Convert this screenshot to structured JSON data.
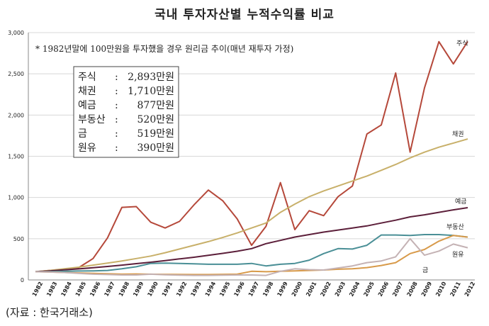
{
  "title": "국내 투자자산별 누적수익률 비교",
  "source": "(자료 : 한국거래소)",
  "chart_data": {
    "type": "line",
    "title": "국내 투자자산별 누적수익률 비교",
    "note": "* 1982년말에 100만원을 투자했을 경우 원리금 추이(매년 재투자 가정)",
    "xlabel": "",
    "ylabel": "",
    "ylim": [
      0,
      3000
    ],
    "yticks": [
      "0",
      "500",
      "1,000",
      "1,500",
      "2,000",
      "2,500",
      "3,000"
    ],
    "grid": true,
    "x": [
      "1982",
      "1983",
      "1984",
      "1985",
      "1986",
      "1987",
      "1988",
      "1989",
      "1990",
      "1991",
      "1992",
      "1993",
      "1994",
      "1995",
      "1996",
      "1997",
      "1998",
      "1999",
      "2000",
      "2001",
      "2002",
      "2003",
      "2004",
      "2005",
      "2006",
      "2007",
      "2008",
      "2009",
      "2010",
      "2011",
      "2012"
    ],
    "summary": [
      {
        "label": "주식",
        "value": "2,893만원"
      },
      {
        "label": "채권",
        "value": "1,710만원"
      },
      {
        "label": "예금",
        "value": "877만원"
      },
      {
        "label": "부동산",
        "value": "520만원"
      },
      {
        "label": "금",
        "value": "519만원"
      },
      {
        "label": "원유",
        "value": "390만원"
      }
    ],
    "series": [
      {
        "name": "주식",
        "color": "#b5483a",
        "values": [
          100,
          115,
          130,
          150,
          260,
          510,
          880,
          890,
          700,
          630,
          710,
          910,
          1090,
          960,
          740,
          420,
          650,
          1180,
          610,
          840,
          780,
          1010,
          1140,
          1770,
          1880,
          2510,
          1550,
          2330,
          2890,
          2620,
          2893
        ]
      },
      {
        "name": "채권",
        "color": "#c8b06a",
        "values": [
          100,
          115,
          135,
          155,
          180,
          205,
          230,
          260,
          290,
          330,
          375,
          420,
          465,
          515,
          570,
          630,
          690,
          820,
          920,
          1010,
          1080,
          1140,
          1200,
          1260,
          1330,
          1400,
          1480,
          1550,
          1610,
          1660,
          1710
        ]
      },
      {
        "name": "예금",
        "color": "#5c1f3a",
        "values": [
          100,
          110,
          122,
          134,
          148,
          163,
          180,
          198,
          215,
          235,
          255,
          275,
          298,
          322,
          348,
          380,
          440,
          480,
          520,
          550,
          580,
          605,
          630,
          655,
          690,
          725,
          765,
          790,
          820,
          850,
          877
        ]
      },
      {
        "name": "부동산",
        "color": "#4a8f96",
        "values": [
          100,
          100,
          105,
          108,
          110,
          115,
          135,
          160,
          200,
          205,
          200,
          195,
          190,
          190,
          190,
          200,
          170,
          190,
          200,
          240,
          320,
          380,
          375,
          420,
          545,
          545,
          540,
          550,
          550,
          540,
          520
        ]
      },
      {
        "name": "금",
        "color": "#d89a4a",
        "values": [
          100,
          95,
          90,
          85,
          80,
          75,
          70,
          72,
          70,
          68,
          66,
          65,
          65,
          68,
          70,
          105,
          100,
          105,
          110,
          115,
          120,
          130,
          135,
          150,
          175,
          210,
          320,
          370,
          470,
          540,
          519
        ]
      },
      {
        "name": "원유",
        "color": "#c4b2b4",
        "values": [
          100,
          95,
          90,
          80,
          70,
          65,
          60,
          60,
          70,
          62,
          58,
          55,
          55,
          58,
          60,
          60,
          55,
          105,
          135,
          125,
          120,
          145,
          170,
          210,
          230,
          280,
          500,
          300,
          350,
          435,
          390
        ]
      }
    ]
  }
}
